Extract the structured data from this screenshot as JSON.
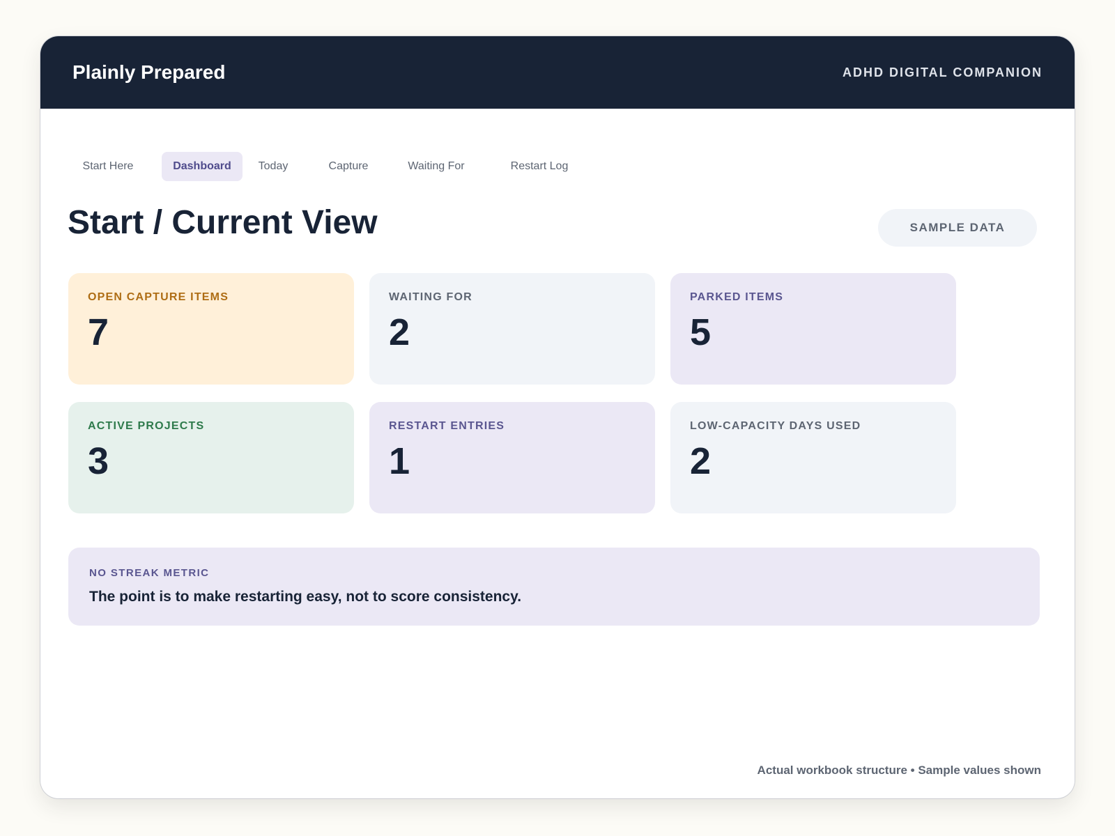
{
  "header": {
    "brand": "Plainly Prepared",
    "tagline": "ADHD DIGITAL COMPANION"
  },
  "tabs": [
    {
      "label": "Start Here",
      "active": false
    },
    {
      "label": "Dashboard",
      "active": true
    },
    {
      "label": "Today",
      "active": false
    },
    {
      "label": "Capture",
      "active": false
    },
    {
      "label": "Waiting For",
      "active": false
    },
    {
      "label": "Restart Log",
      "active": false
    }
  ],
  "page": {
    "title": "Start / Current View",
    "badge": "SAMPLE DATA"
  },
  "metrics": [
    {
      "label": "OPEN CAPTURE ITEMS",
      "value": "7",
      "tone": "orange"
    },
    {
      "label": "WAITING FOR",
      "value": "2",
      "tone": "slate"
    },
    {
      "label": "PARKED ITEMS",
      "value": "5",
      "tone": "purple"
    },
    {
      "label": "ACTIVE PROJECTS",
      "value": "3",
      "tone": "green"
    },
    {
      "label": "RESTART ENTRIES",
      "value": "1",
      "tone": "purple"
    },
    {
      "label": "LOW-CAPACITY DAYS USED",
      "value": "2",
      "tone": "slate"
    }
  ],
  "note": {
    "label": "NO STREAK METRIC",
    "text": "The point is to make restarting easy, not to score consistency."
  },
  "footer": {
    "text": "Actual workbook structure • Sample values shown"
  },
  "colors": {
    "header_bg": "#182336",
    "accent_purple": "#5a5690",
    "accent_orange": "#ae6d14",
    "accent_green": "#2e7a4b"
  }
}
